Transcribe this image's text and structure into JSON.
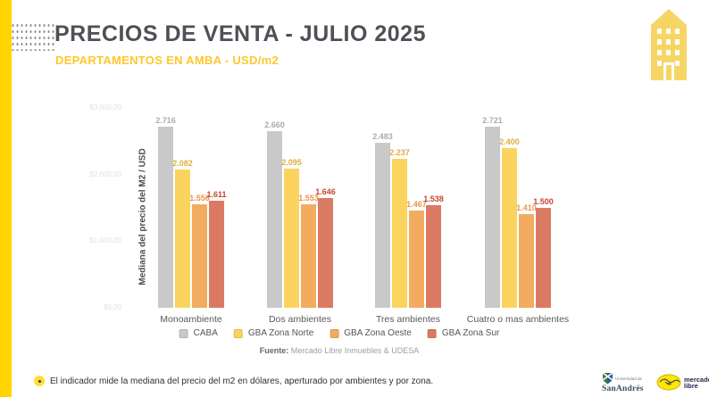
{
  "page": {
    "title": "PRECIOS DE VENTA - JULIO 2025",
    "subtitle": "DEPARTAMENTOS EN AMBA - USD/m2"
  },
  "chart_data": {
    "type": "bar",
    "title": "PRECIOS DE VENTA - JULIO 2025",
    "ylabel": "Mediana del precio del M2 / USD",
    "xlabel": "",
    "categories": [
      "Monoambiente",
      "Dos ambientes",
      "Tres ambientes",
      "Cuatro o mas ambientes"
    ],
    "series": [
      {
        "name": "CABA",
        "color": "#C9C9C9",
        "label_color": "#ABABAB",
        "values": [
          2716,
          2660,
          2483,
          2721
        ],
        "labels": [
          "2.716",
          "2.660",
          "2.483",
          "2.721"
        ]
      },
      {
        "name": "GBA Zona Norte",
        "color": "#FAD45E",
        "label_color": "#DFAE3E",
        "values": [
          2082,
          2095,
          2237,
          2400
        ],
        "labels": [
          "2.082",
          "2.095",
          "2.237",
          "2.400"
        ]
      },
      {
        "name": "GBA Zona Oeste",
        "color": "#F2AC60",
        "label_color": "#E9964F",
        "values": [
          1556,
          1553,
          1467,
          1410
        ],
        "labels": [
          "1.556",
          "1.553",
          "1.467",
          "1.410"
        ]
      },
      {
        "name": "GBA Zona Sur",
        "color": "#DB7A63",
        "label_color": "#C7452E",
        "values": [
          1611,
          1646,
          1538,
          1500
        ],
        "labels": [
          "1.611",
          "1.646",
          "1.538",
          "1.500"
        ]
      }
    ],
    "ylim": [
      0,
      3000
    ],
    "y_tick_values": [
      3000,
      2000,
      1000,
      0
    ],
    "y_tick_labels": [
      "$3.000,00",
      "$2.000,00",
      "$1.000,00",
      "$0,00"
    ],
    "grid": false,
    "legend_position": "bottom",
    "source_label": "Fuente:",
    "source_text": " Mercado Libre Inmuebles & UDESA"
  },
  "footer": {
    "note": "El indicador mide la mediana del precio del m2 en dólares, aperturado por ambientes y por zona."
  },
  "logos": {
    "udesa_small": "Universidad de",
    "udesa_name": "SanAndrés",
    "meli_line1": "mercado",
    "meli_line2": "libre"
  }
}
